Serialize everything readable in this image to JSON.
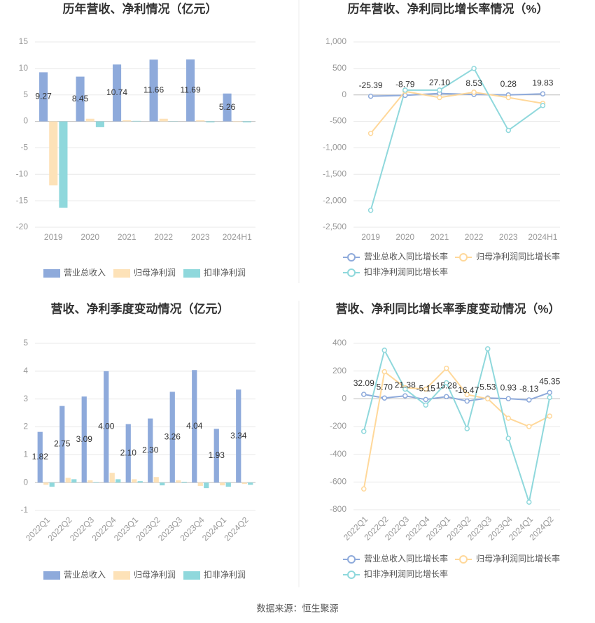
{
  "chart_data": [
    {
      "type": "bar",
      "title": "历年营收、净利情况（亿元）",
      "categories": [
        "2019",
        "2020",
        "2021",
        "2022",
        "2023",
        "2024H1"
      ],
      "series": [
        {
          "name": "营业总收入",
          "color": "#8eaadb",
          "values": [
            9.27,
            8.45,
            10.74,
            11.66,
            11.69,
            5.26
          ],
          "value_labels": [
            "9.27",
            "8.45",
            "10.74",
            "11.66",
            "11.69",
            "5.26"
          ]
        },
        {
          "name": "归母净利润",
          "color": "#fde2b8",
          "values": [
            -12.1,
            0.5,
            0.2,
            0.5,
            0.2,
            -0.1
          ]
        },
        {
          "name": "扣非净利润",
          "color": "#8fd8dc",
          "values": [
            -16.3,
            -1.1,
            0.1,
            0.05,
            -0.2,
            -0.2
          ]
        }
      ],
      "ylim": [
        -20,
        15
      ],
      "yticks": [
        -20,
        -15,
        -10,
        -5,
        0,
        5,
        10,
        15
      ],
      "grid": true
    },
    {
      "type": "line",
      "title": "历年营收、净利同比增长率情况（%）",
      "categories": [
        "2019",
        "2020",
        "2021",
        "2022",
        "2023",
        "2024H1"
      ],
      "series": [
        {
          "name": "营业总收入同比增长率",
          "color": "#8eaadb",
          "values": [
            -25.39,
            -8.79,
            27.1,
            8.53,
            0.28,
            19.83
          ],
          "value_labels": [
            "-25.39",
            "-8.79",
            "27.10",
            "8.53",
            "0.28",
            "19.83"
          ]
        },
        {
          "name": "归母净利润同比增长率",
          "color": "#ffd89a",
          "values": [
            -727,
            66,
            -50,
            50,
            -50,
            -160
          ]
        },
        {
          "name": "扣非净利润同比增长率",
          "color": "#8fd8dc",
          "values": [
            -2180,
            90,
            90,
            500,
            -670,
            -200
          ]
        }
      ],
      "ylim": [
        -2500,
        1000
      ],
      "yticks": [
        {
          "value": -2500,
          "label": "-2,500"
        },
        {
          "value": -2000,
          "label": "-2,000"
        },
        {
          "value": -1500,
          "label": "-1,500"
        },
        {
          "value": -1000,
          "label": "-1,000"
        },
        -500,
        0,
        500,
        {
          "value": 1000,
          "label": "1,000"
        }
      ],
      "grid": true
    },
    {
      "type": "bar",
      "title": "营收、净利季度变动情况（亿元）",
      "categories": [
        "2022Q1",
        "2022Q2",
        "2022Q3",
        "2022Q4",
        "2023Q1",
        "2023Q2",
        "2023Q3",
        "2023Q4",
        "2024Q1",
        "2024Q2"
      ],
      "series": [
        {
          "name": "营业总收入",
          "color": "#8eaadb",
          "values": [
            1.82,
            2.75,
            3.09,
            4.0,
            2.1,
            2.3,
            3.26,
            4.04,
            1.93,
            3.34
          ],
          "value_labels": [
            "1.82",
            "2.75",
            "3.09",
            "4.00",
            "2.10",
            "2.30",
            "3.26",
            "4.04",
            "1.93",
            "3.34"
          ]
        },
        {
          "name": "归母净利润",
          "color": "#fde2b8",
          "values": [
            -0.08,
            0.17,
            0.08,
            0.35,
            0.12,
            0.2,
            0.08,
            -0.12,
            -0.1,
            -0.05
          ]
        },
        {
          "name": "扣非净利润",
          "color": "#8fd8dc",
          "values": [
            -0.15,
            0.12,
            0.02,
            0.12,
            0.05,
            -0.1,
            0.03,
            -0.2,
            -0.15,
            -0.08
          ]
        }
      ],
      "ylim": [
        -1,
        5
      ],
      "yticks": [
        -1,
        0,
        1,
        2,
        3,
        4,
        5
      ],
      "grid": true
    },
    {
      "type": "line",
      "title": "营收、净利同比增长率季度变动情况（%）",
      "categories": [
        "2022Q1",
        "2022Q2",
        "2022Q3",
        "2022Q4",
        "2023Q1",
        "2023Q2",
        "2023Q3",
        "2023Q4",
        "2024Q1",
        "2024Q2"
      ],
      "series": [
        {
          "name": "营业总收入同比增长率",
          "color": "#8eaadb",
          "values": [
            32.09,
            5.7,
            21.38,
            -5.15,
            15.28,
            -16.47,
            5.53,
            0.93,
            -8.13,
            45.35
          ],
          "value_labels": [
            "32.09",
            "5.70",
            "21.38",
            "-5.15",
            "15.28",
            "-16.47",
            "5.53",
            "0.93",
            "-8.13",
            "45.35"
          ]
        },
        {
          "name": "归母净利润同比增长率",
          "color": "#ffd89a",
          "values": [
            -650,
            195,
            80,
            70,
            220,
            30,
            0,
            -140,
            -200,
            -125
          ]
        },
        {
          "name": "扣非净利润同比增长率",
          "color": "#8fd8dc",
          "values": [
            -235,
            350,
            70,
            -45,
            115,
            -215,
            360,
            -285,
            -745,
            10
          ]
        }
      ],
      "ylim": [
        -800,
        400
      ],
      "yticks": [
        -800,
        -600,
        -400,
        -200,
        0,
        200,
        400
      ],
      "grid": true
    }
  ],
  "source": "数据来源：恒生聚源"
}
